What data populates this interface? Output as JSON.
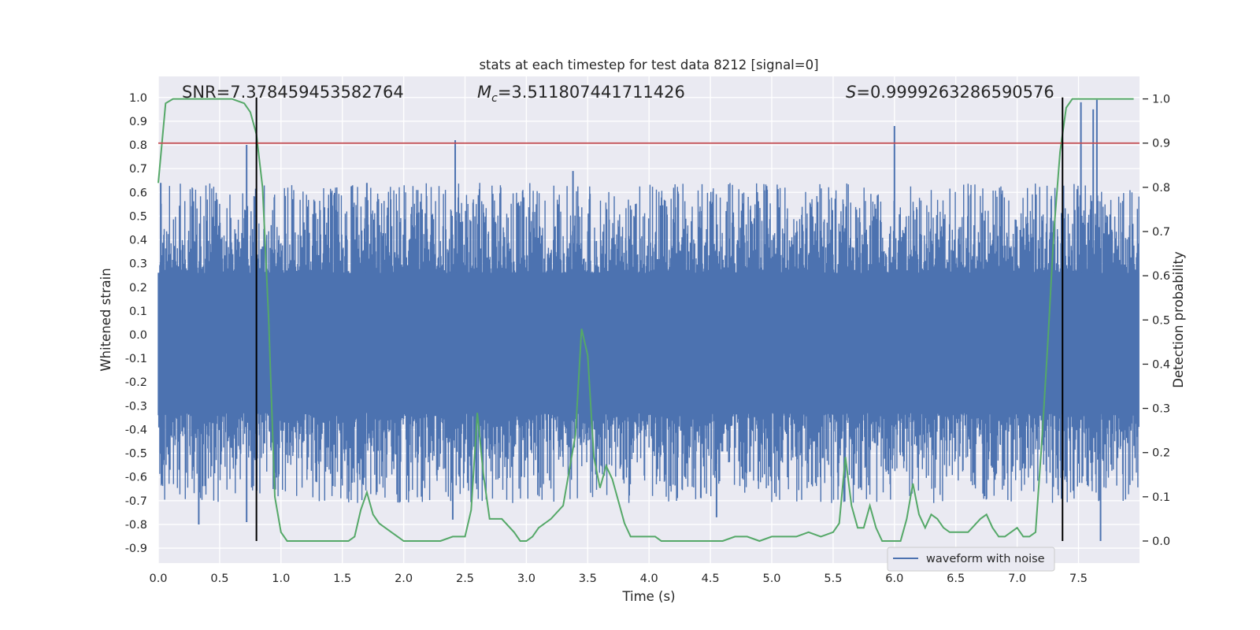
{
  "chart_data": {
    "type": "line",
    "title": "stats at each timestep for test data 8212 [signal=0]",
    "xlabel": "Time (s)",
    "ylabel": "Whitened strain",
    "y2label": "Detection probability",
    "xlim": [
      0,
      8
    ],
    "ylim": [
      -0.99,
      1.09
    ],
    "y2lim": [
      -0.05,
      1.05
    ],
    "x_ticks": [
      0.0,
      0.5,
      1.0,
      1.5,
      2.0,
      2.5,
      3.0,
      3.5,
      4.0,
      4.5,
      5.0,
      5.5,
      6.0,
      6.5,
      7.0,
      7.5
    ],
    "x_tick_labels": [
      "0.0",
      "0.5",
      "1.0",
      "1.5",
      "2.0",
      "2.5",
      "3.0",
      "3.5",
      "4.0",
      "4.5",
      "5.0",
      "5.5",
      "6.0",
      "6.5",
      "7.0",
      "7.5"
    ],
    "y_ticks": [
      1.0,
      0.9,
      0.8,
      0.7,
      0.6,
      0.5,
      0.4,
      0.3,
      0.2,
      0.1,
      0.0,
      -0.1,
      -0.2,
      -0.3,
      -0.4,
      -0.5,
      -0.6,
      -0.7,
      -0.8,
      -0.9
    ],
    "y_tick_labels": [
      "1.0",
      "0.9",
      "0.8",
      "0.7",
      "0.6",
      "0.5",
      "0.4",
      "0.3",
      "0.2",
      "0.1",
      "0.0",
      "-0.1",
      "-0.2",
      "-0.3",
      "-0.4",
      "-0.5",
      "-0.6",
      "-0.7",
      "-0.8",
      "-0.9"
    ],
    "y2_ticks": [
      1.0,
      0.9,
      0.8,
      0.7,
      0.6,
      0.5,
      0.4,
      0.3,
      0.2,
      0.1,
      0.0
    ],
    "y2_tick_labels": [
      "1.0",
      "0.9",
      "0.8",
      "0.7",
      "0.6",
      "0.5",
      "0.4",
      "0.3",
      "0.2",
      "0.1",
      "0.0"
    ],
    "grid": true,
    "legend_position": "lower-right",
    "annotations": [
      {
        "id": "snr",
        "text": "SNR=7.378459453582764"
      },
      {
        "id": "mc",
        "text_main": "M",
        "text_sub": "c",
        "text_rest": "=3.511807441711426"
      },
      {
        "id": "s",
        "text_main": "S",
        "text_rest": "=0.9999263286590576"
      }
    ],
    "series": [
      {
        "name": "waveform with noise",
        "axis": "left",
        "color": "#4c72b0",
        "description_values": "dense noise",
        "noise_band_pos": 0.26,
        "noise_band_neg": -0.33,
        "peaks": [
          {
            "x": 0.02,
            "y": 0.64
          },
          {
            "x": 0.33,
            "y": -0.8
          },
          {
            "x": 0.72,
            "y": 0.8
          },
          {
            "x": 0.72,
            "y": -0.79
          },
          {
            "x": 1.7,
            "y": 0.64
          },
          {
            "x": 2.42,
            "y": 0.82
          },
          {
            "x": 2.4,
            "y": -0.78
          },
          {
            "x": 3.38,
            "y": 0.69
          },
          {
            "x": 4.55,
            "y": -0.77
          },
          {
            "x": 6.0,
            "y": 0.88
          },
          {
            "x": 7.52,
            "y": 0.98
          },
          {
            "x": 7.65,
            "y": 0.99
          },
          {
            "x": 7.68,
            "y": -0.87
          },
          {
            "x": 7.62,
            "y": 0.95
          }
        ]
      },
      {
        "name": "",
        "axis": "right",
        "color": "#55a868",
        "x": [
          0.0,
          0.06,
          0.12,
          0.2,
          0.3,
          0.4,
          0.5,
          0.6,
          0.7,
          0.75,
          0.8,
          0.85,
          0.9,
          0.95,
          1.0,
          1.05,
          1.1,
          1.2,
          1.3,
          1.4,
          1.5,
          1.55,
          1.6,
          1.65,
          1.7,
          1.75,
          1.8,
          1.9,
          2.0,
          2.1,
          2.2,
          2.3,
          2.4,
          2.5,
          2.55,
          2.6,
          2.65,
          2.7,
          2.75,
          2.8,
          2.9,
          2.95,
          3.0,
          3.05,
          3.1,
          3.2,
          3.3,
          3.4,
          3.45,
          3.5,
          3.55,
          3.6,
          3.65,
          3.7,
          3.75,
          3.8,
          3.85,
          3.9,
          4.0,
          4.05,
          4.1,
          4.2,
          4.3,
          4.4,
          4.5,
          4.6,
          4.7,
          4.8,
          4.9,
          5.0,
          5.1,
          5.2,
          5.3,
          5.4,
          5.5,
          5.55,
          5.6,
          5.65,
          5.7,
          5.75,
          5.8,
          5.85,
          5.9,
          6.0,
          6.05,
          6.1,
          6.15,
          6.2,
          6.25,
          6.3,
          6.35,
          6.4,
          6.45,
          6.5,
          6.6,
          6.7,
          6.75,
          6.8,
          6.85,
          6.9,
          7.0,
          7.05,
          7.1,
          7.15,
          7.2,
          7.25,
          7.3,
          7.35,
          7.4,
          7.45,
          7.5,
          7.55,
          7.6,
          7.7,
          7.8,
          7.95
        ],
        "values": [
          0.81,
          0.99,
          1.0,
          1.0,
          1.0,
          1.0,
          1.0,
          1.0,
          0.99,
          0.97,
          0.92,
          0.8,
          0.5,
          0.1,
          0.02,
          0.0,
          0.0,
          0.0,
          0.0,
          0.0,
          0.0,
          0.0,
          0.01,
          0.07,
          0.11,
          0.06,
          0.04,
          0.02,
          0.0,
          0.0,
          0.0,
          0.0,
          0.01,
          0.01,
          0.07,
          0.29,
          0.15,
          0.05,
          0.05,
          0.05,
          0.02,
          0.0,
          0.0,
          0.01,
          0.03,
          0.05,
          0.08,
          0.24,
          0.48,
          0.42,
          0.19,
          0.12,
          0.17,
          0.14,
          0.09,
          0.04,
          0.01,
          0.01,
          0.01,
          0.01,
          0.0,
          0.0,
          0.0,
          0.0,
          0.0,
          0.0,
          0.01,
          0.01,
          0.0,
          0.01,
          0.01,
          0.01,
          0.02,
          0.01,
          0.02,
          0.04,
          0.19,
          0.08,
          0.03,
          0.03,
          0.08,
          0.03,
          0.0,
          0.0,
          0.0,
          0.05,
          0.13,
          0.06,
          0.03,
          0.06,
          0.05,
          0.03,
          0.02,
          0.02,
          0.02,
          0.05,
          0.06,
          0.03,
          0.01,
          0.01,
          0.03,
          0.01,
          0.01,
          0.02,
          0.22,
          0.45,
          0.7,
          0.88,
          0.98,
          1.0,
          1.0,
          1.0,
          1.0,
          1.0,
          1.0,
          1.0
        ]
      }
    ],
    "threshold_line": {
      "axis": "right",
      "value": 0.9,
      "color": "#c44e52"
    },
    "vertical_lines": [
      {
        "x": 0.8,
        "color": "#000000"
      },
      {
        "x": 7.37,
        "color": "#000000"
      }
    ]
  }
}
